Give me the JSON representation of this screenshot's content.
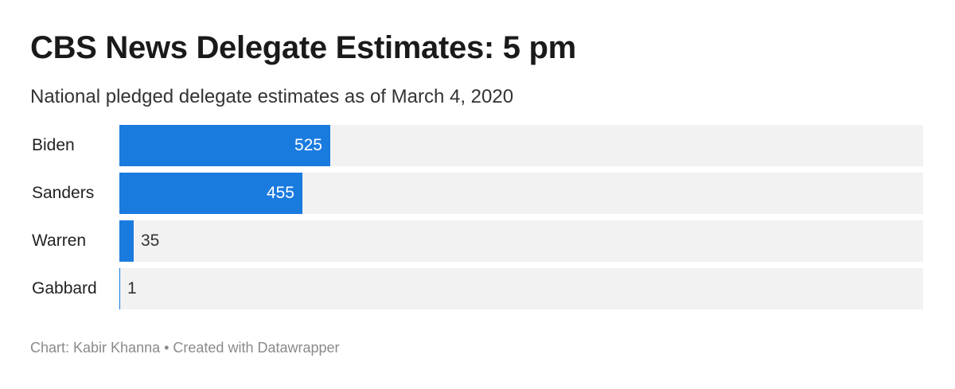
{
  "chart_data": {
    "type": "bar",
    "orientation": "horizontal",
    "title": "CBS News Delegate Estimates: 5 pm",
    "subtitle": "National pledged delegate estimates as of March 4, 2020",
    "categories": [
      "Biden",
      "Sanders",
      "Warren",
      "Gabbard"
    ],
    "values": [
      525,
      455,
      35,
      1
    ],
    "value_labels": [
      "525",
      "455",
      "35",
      "1"
    ],
    "xlim": [
      0,
      2000
    ],
    "grid": false,
    "legend": "none",
    "colors": {
      "bar": "#1a7bdf",
      "track": "#f2f2f2"
    }
  },
  "footer": {
    "text": "Chart: Kabir Khanna • Created with Datawrapper"
  }
}
